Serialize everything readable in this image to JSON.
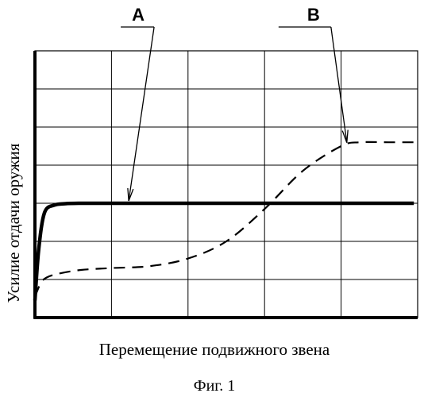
{
  "chart_data": {
    "type": "line",
    "xlabel": "Перемещение подвижного звена",
    "ylabel": "Усилие отдачи оружия",
    "caption": "Фиг. 1",
    "xlim": [
      0,
      10
    ],
    "ylim": [
      0,
      7
    ],
    "grid": true,
    "grid_divisions": {
      "x": 5,
      "y": 7
    },
    "series": [
      {
        "id": "A",
        "callout": "A",
        "style": "solid",
        "x": [
          0,
          0.1,
          0.25,
          0.5,
          0.8,
          1.2,
          2,
          4,
          6,
          8,
          9.9
        ],
        "y": [
          0.45,
          1.8,
          2.75,
          2.95,
          2.99,
          3.0,
          3.0,
          3.0,
          3.0,
          3.0,
          3.0
        ]
      },
      {
        "id": "B",
        "callout": "B",
        "style": "dashed",
        "x": [
          0,
          0.15,
          0.3,
          0.6,
          1.2,
          2,
          3,
          4,
          5,
          6,
          7,
          8,
          8.5,
          9.3,
          9.9
        ],
        "y": [
          0.55,
          0.9,
          1.05,
          1.15,
          1.25,
          1.3,
          1.35,
          1.55,
          2.0,
          2.85,
          3.85,
          4.5,
          4.6,
          4.6,
          4.6
        ]
      }
    ],
    "annotations": [
      {
        "label": "A",
        "series": "A",
        "at_x": 2.45
      },
      {
        "label": "B",
        "series": "B",
        "at_x": 8.15
      }
    ]
  }
}
